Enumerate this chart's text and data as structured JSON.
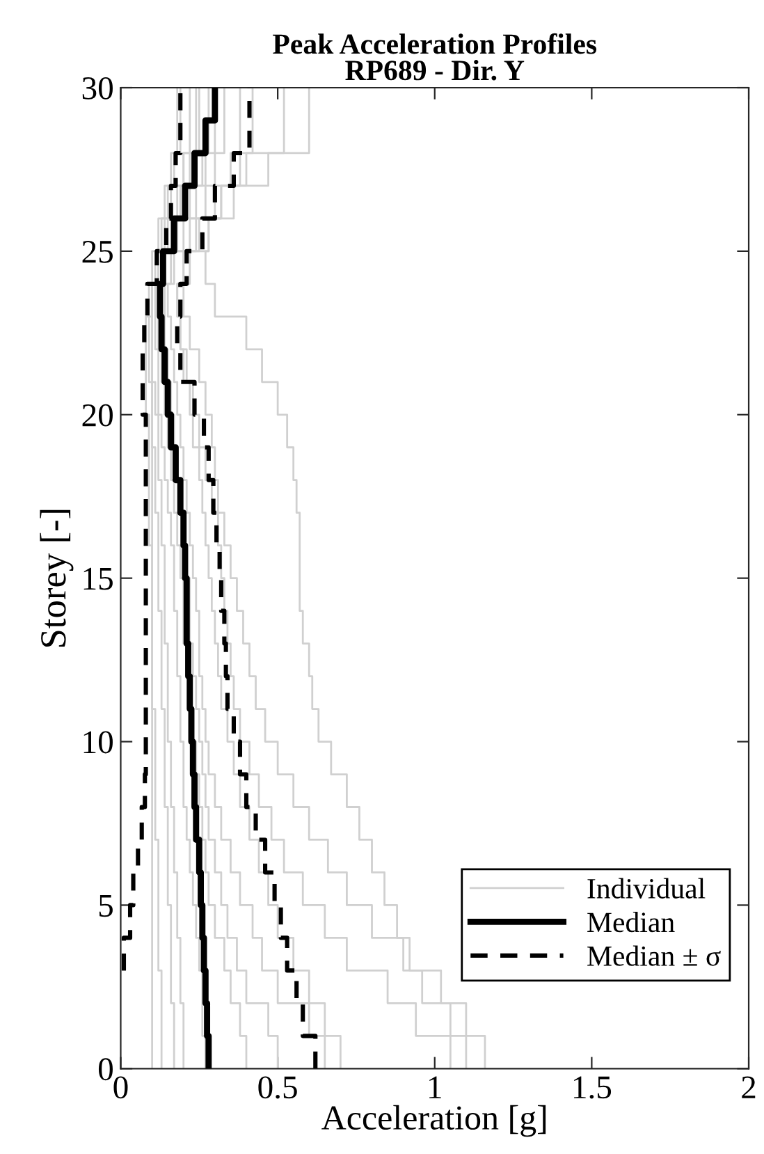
{
  "chart_data": {
    "type": "step",
    "orientation": "horizontal",
    "title": "Peak Acceleration Profiles\nRP689 - Dir. Y",
    "xlabel": "Acceleration [g]",
    "ylabel": "Storey [-]",
    "x": [
      0,
      1,
      2,
      3,
      4,
      5,
      6,
      7,
      8,
      9,
      10,
      11,
      12,
      13,
      14,
      15,
      16,
      17,
      18,
      19,
      20,
      21,
      22,
      23,
      24,
      25,
      26,
      27,
      28,
      29,
      30
    ],
    "xlim": [
      0,
      2
    ],
    "xticks": [
      0,
      0.5,
      1,
      1.5,
      2
    ],
    "ylim": [
      0,
      30
    ],
    "yticks": [
      0,
      5,
      10,
      15,
      20,
      25,
      30
    ],
    "grid": false,
    "legend": "bottom right",
    "marker": "none",
    "series": [
      {
        "name": "Individual",
        "color": "#d0d0d0",
        "line_style": "solid",
        "values": [
          1.16,
          1.1,
          1.02,
          0.92,
          0.88,
          0.84,
          0.8,
          0.76,
          0.72,
          0.67,
          0.63,
          0.61,
          0.6,
          0.58,
          0.57,
          0.57,
          0.57,
          0.56,
          0.55,
          0.53,
          0.5,
          0.45,
          0.4,
          0.3,
          0.27,
          0.28,
          0.32,
          0.4,
          0.6,
          0.6,
          0.6
        ]
      },
      {
        "color": "#d0d0d0",
        "line_style": "solid",
        "values": [
          1.1,
          1.05,
          0.96,
          0.9,
          0.8,
          0.72,
          0.66,
          0.6,
          0.55,
          0.5,
          0.46,
          0.43,
          0.41,
          0.39,
          0.37,
          0.35,
          0.33,
          0.31,
          0.3,
          0.29,
          0.27,
          0.25,
          0.22,
          0.2,
          0.22,
          0.28,
          0.36,
          0.47,
          0.52,
          0.52,
          0.52
        ]
      },
      {
        "color": "#d0d0d0",
        "line_style": "solid",
        "values": [
          1.05,
          0.94,
          0.85,
          0.72,
          0.65,
          0.58,
          0.52,
          0.48,
          0.44,
          0.41,
          0.38,
          0.36,
          0.35,
          0.34,
          0.33,
          0.32,
          0.31,
          0.29,
          0.27,
          0.25,
          0.23,
          0.21,
          0.19,
          0.18,
          0.2,
          0.25,
          0.32,
          0.38,
          0.42,
          0.42,
          0.42
        ]
      },
      {
        "color": "#d0d0d0",
        "line_style": "solid",
        "values": [
          0.7,
          0.65,
          0.6,
          0.55,
          0.5,
          0.47,
          0.44,
          0.41,
          0.38,
          0.36,
          0.34,
          0.32,
          0.31,
          0.3,
          0.29,
          0.28,
          0.27,
          0.26,
          0.25,
          0.23,
          0.22,
          0.2,
          0.19,
          0.18,
          0.2,
          0.24,
          0.3,
          0.35,
          0.38,
          0.38,
          0.38
        ]
      },
      {
        "color": "#d0d0d0",
        "line_style": "solid",
        "values": [
          0.65,
          0.6,
          0.5,
          0.45,
          0.42,
          0.38,
          0.35,
          0.32,
          0.3,
          0.28,
          0.27,
          0.26,
          0.25,
          0.25,
          0.24,
          0.23,
          0.22,
          0.21,
          0.2,
          0.19,
          0.18,
          0.17,
          0.16,
          0.15,
          0.17,
          0.22,
          0.27,
          0.3,
          0.33,
          0.33,
          0.33
        ]
      },
      {
        "color": "#d0d0d0",
        "line_style": "solid",
        "values": [
          0.5,
          0.47,
          0.4,
          0.37,
          0.34,
          0.32,
          0.3,
          0.28,
          0.27,
          0.26,
          0.25,
          0.24,
          0.23,
          0.22,
          0.22,
          0.21,
          0.2,
          0.19,
          0.18,
          0.17,
          0.16,
          0.15,
          0.14,
          0.14,
          0.16,
          0.2,
          0.24,
          0.27,
          0.3,
          0.3,
          0.3
        ]
      },
      {
        "color": "#d0d0d0",
        "line_style": "solid",
        "values": [
          0.4,
          0.38,
          0.35,
          0.33,
          0.3,
          0.28,
          0.27,
          0.26,
          0.25,
          0.24,
          0.23,
          0.22,
          0.21,
          0.2,
          0.2,
          0.19,
          0.18,
          0.17,
          0.16,
          0.15,
          0.14,
          0.13,
          0.12,
          0.12,
          0.14,
          0.18,
          0.22,
          0.26,
          0.28,
          0.28,
          0.28
        ]
      },
      {
        "color": "#d0d0d0",
        "line_style": "solid",
        "values": [
          0.27,
          0.26,
          0.26,
          0.25,
          0.24,
          0.23,
          0.22,
          0.21,
          0.2,
          0.2,
          0.19,
          0.19,
          0.18,
          0.18,
          0.17,
          0.17,
          0.16,
          0.15,
          0.14,
          0.13,
          0.12,
          0.12,
          0.11,
          0.11,
          0.13,
          0.16,
          0.19,
          0.22,
          0.25,
          0.25,
          0.25
        ]
      },
      {
        "color": "#d0d0d0",
        "line_style": "solid",
        "values": [
          0.2,
          0.2,
          0.19,
          0.19,
          0.18,
          0.18,
          0.17,
          0.17,
          0.16,
          0.16,
          0.15,
          0.15,
          0.15,
          0.14,
          0.14,
          0.14,
          0.13,
          0.13,
          0.12,
          0.12,
          0.11,
          0.1,
          0.1,
          0.1,
          0.12,
          0.15,
          0.18,
          0.2,
          0.22,
          0.22,
          0.22
        ]
      },
      {
        "color": "#d0d0d0",
        "line_style": "solid",
        "values": [
          0.17,
          0.17,
          0.16,
          0.16,
          0.16,
          0.15,
          0.15,
          0.15,
          0.14,
          0.14,
          0.14,
          0.13,
          0.13,
          0.13,
          0.12,
          0.12,
          0.12,
          0.11,
          0.11,
          0.1,
          0.1,
          0.09,
          0.09,
          0.1,
          0.11,
          0.13,
          0.15,
          0.17,
          0.19,
          0.19,
          0.19
        ]
      },
      {
        "color": "#d0d0d0",
        "line_style": "solid",
        "values": [
          0.13,
          0.13,
          0.13,
          0.12,
          0.12,
          0.12,
          0.12,
          0.11,
          0.11,
          0.11,
          0.11,
          0.1,
          0.1,
          0.1,
          0.1,
          0.1,
          0.09,
          0.09,
          0.09,
          0.09,
          0.08,
          0.08,
          0.08,
          0.09,
          0.1,
          0.12,
          0.14,
          0.16,
          0.18,
          0.18,
          0.18
        ]
      },
      {
        "color": "#d0d0d0",
        "line_style": "solid",
        "values": [
          0.1,
          0.1,
          0.1,
          0.1,
          0.1,
          0.1,
          0.1,
          0.1,
          0.1,
          0.1,
          0.1,
          0.1,
          0.1,
          0.1,
          0.1,
          0.1,
          0.1,
          0.1,
          0.1,
          0.1,
          0.1,
          0.1,
          0.1,
          0.1,
          0.12,
          0.14,
          0.16,
          0.2,
          0.24,
          0.24,
          0.24
        ]
      },
      {
        "name": "Median",
        "color": "#000000",
        "line_style": "solid",
        "values": [
          0.28,
          0.275,
          0.27,
          0.265,
          0.26,
          0.255,
          0.25,
          0.24,
          0.235,
          0.23,
          0.225,
          0.22,
          0.215,
          0.21,
          0.21,
          0.205,
          0.2,
          0.19,
          0.175,
          0.16,
          0.15,
          0.14,
          0.13,
          0.125,
          0.135,
          0.17,
          0.205,
          0.235,
          0.27,
          0.3,
          0.3
        ]
      },
      {
        "name": "Median ± σ",
        "color": "#000000",
        "line_style": "dashed",
        "values": [
          0.62,
          0.58,
          0.56,
          0.53,
          0.51,
          0.49,
          0.46,
          0.43,
          0.4,
          0.38,
          0.36,
          0.34,
          0.335,
          0.33,
          0.32,
          0.315,
          0.305,
          0.295,
          0.28,
          0.265,
          0.235,
          0.19,
          0.18,
          0.19,
          0.21,
          0.26,
          0.3,
          0.36,
          0.41,
          0.41,
          0.41
        ]
      },
      {
        "color": "#000000",
        "line_style": "dashed",
        "values": [
          null,
          null,
          null,
          0.01,
          0.03,
          0.04,
          0.055,
          0.067,
          0.077,
          0.08,
          0.08,
          0.08,
          0.08,
          0.08,
          0.08,
          0.08,
          0.08,
          0.08,
          0.08,
          0.08,
          0.07,
          0.07,
          0.075,
          0.085,
          0.115,
          0.145,
          0.16,
          0.175,
          0.19,
          0.19,
          0.19
        ]
      }
    ]
  }
}
